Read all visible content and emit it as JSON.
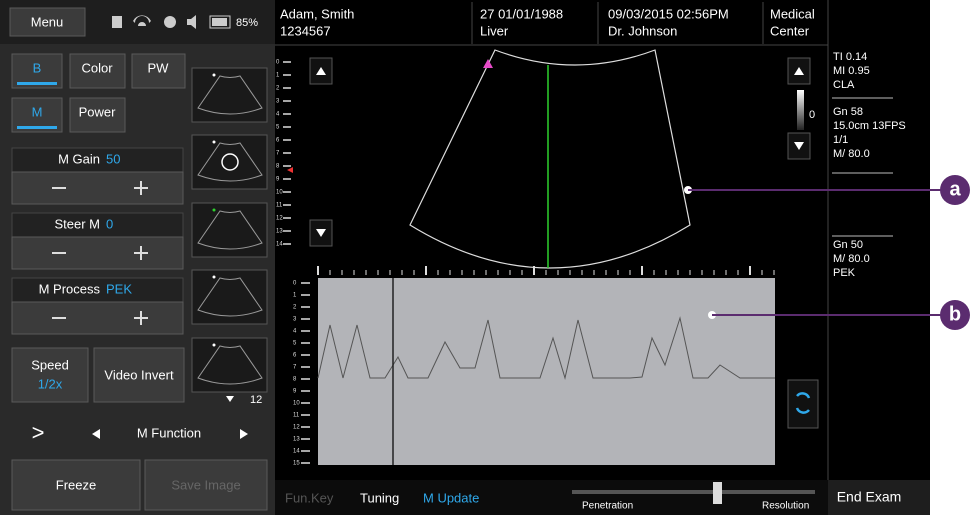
{
  "menu": "Menu",
  "battery": "85%",
  "modes": [
    "B",
    "Color",
    "PW",
    "M",
    "Power"
  ],
  "controls": [
    {
      "label": "M Gain",
      "value": "50"
    },
    {
      "label": "Steer M",
      "value": "0"
    },
    {
      "label": "M Process",
      "value": "PEK"
    }
  ],
  "speed": {
    "label": "Speed",
    "value": "1/2x"
  },
  "video_invert": "Video Invert",
  "next": ">",
  "function": "M Function",
  "freeze": "Freeze",
  "save_image": "Save Image",
  "thumbnail_count": "12",
  "patient": {
    "name": "Adam, Smith",
    "id": "1234567"
  },
  "exam": {
    "date": "27 01/01/1988",
    "type": "Liver"
  },
  "session": {
    "datetime": "09/03/2015 02:56PM",
    "doctor": "Dr. Johnson"
  },
  "facility": [
    "Medical",
    "Center"
  ],
  "info_top": [
    "TI 0.14",
    "MI 0.95",
    "CLA"
  ],
  "info_mid": [
    "Gn 58",
    "15.0cm 13FPS",
    "1/1",
    "M/ 80.0"
  ],
  "info_bottom": [
    "Gn 50",
    "M/ 80.0",
    "PEK"
  ],
  "gray_zero": "0",
  "depth_scale": [
    0,
    1,
    2,
    3,
    4,
    5,
    6,
    7,
    8,
    9,
    10,
    11,
    12,
    13,
    14
  ],
  "mmode_scale": [
    0,
    1,
    2,
    3,
    4,
    5,
    6,
    7,
    8,
    9,
    10,
    11,
    12,
    13,
    14,
    15
  ],
  "bottom": {
    "fun_key": "Fun.Key",
    "tuning": "Tuning",
    "m_update": "M Update",
    "penetration": "Penetration",
    "resolution": "Resolution",
    "end_exam": "End Exam"
  },
  "callouts": [
    "a",
    "b"
  ]
}
